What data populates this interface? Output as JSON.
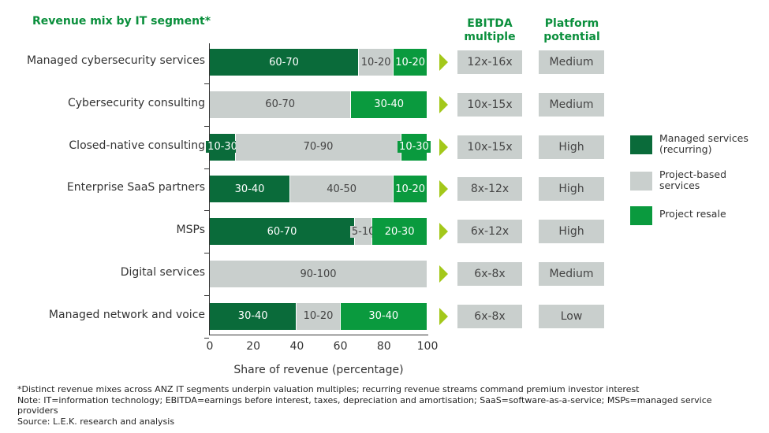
{
  "chart_data": {
    "type": "bar",
    "orientation": "horizontal",
    "stacked": true,
    "title": "Revenue mix by IT segment*",
    "xlabel": "Share of revenue (percentage)",
    "xlim": [
      0,
      100
    ],
    "xticks": [
      "0",
      "20",
      "40",
      "60",
      "80",
      "100"
    ],
    "grid": false,
    "legend_placement": "right",
    "categories": [
      "Managed cybersecurity services",
      "Cybersecurity consulting",
      "Closed-native consulting",
      "Enterprise SaaS partners",
      "MSPs",
      "Digital services",
      "Managed network and voice"
    ],
    "series": [
      {
        "name": "Managed services (recurring)",
        "color": "#0a6b3a",
        "text_color": "#ffffff",
        "values": [
          68.5,
          0,
          12,
          37,
          66.7,
          0,
          40
        ],
        "labels": [
          "60-70",
          "",
          "10-30",
          "30-40",
          "60-70",
          "",
          "30-40"
        ]
      },
      {
        "name": "Project-based services",
        "color": "#c9cfcd",
        "text_color": "#444444",
        "values": [
          16,
          65,
          76,
          47.5,
          8,
          100,
          20
        ],
        "labels": [
          "10-20",
          "60-70",
          "70-90",
          "40-50",
          "5-10",
          "90-100",
          "10-20"
        ]
      },
      {
        "name": "Project resale",
        "color": "#0a9a3e",
        "text_color": "#ffffff",
        "values": [
          15.5,
          35,
          12,
          15.5,
          25.3,
          0,
          40
        ],
        "labels": [
          "10-20",
          "30-40",
          "10-30",
          "10-20",
          "20-30",
          "",
          "30-40"
        ]
      }
    ],
    "legend": [
      {
        "label": "Managed services (recurring)",
        "color": "#0a6b3a"
      },
      {
        "label": "Project-based services",
        "color": "#c9cfcd"
      },
      {
        "label": "Project resale",
        "color": "#0a9a3e"
      }
    ],
    "columns": {
      "ebitda_header": "EBITDA multiple",
      "platform_header": "Platform potential",
      "ebitda": [
        "12x-16x",
        "10x-15x",
        "10x-15x",
        "8x-12x",
        "6x-12x",
        "6x-8x",
        "6x-8x"
      ],
      "platform": [
        "Medium",
        "Medium",
        "High",
        "High",
        "High",
        "Medium",
        "Low"
      ]
    },
    "arrow_color": "#a3c81a"
  },
  "footnotes": [
    "*Distinct revenue mixes across ANZ IT segments underpin valuation multiples; recurring revenue streams command premium investor interest",
    "Note: IT=information technology; EBITDA=earnings before interest, taxes, depreciation and amortisation; SaaS=software-as-a-service; MSPs=managed service providers",
    "Source: L.E.K. research and analysis"
  ]
}
